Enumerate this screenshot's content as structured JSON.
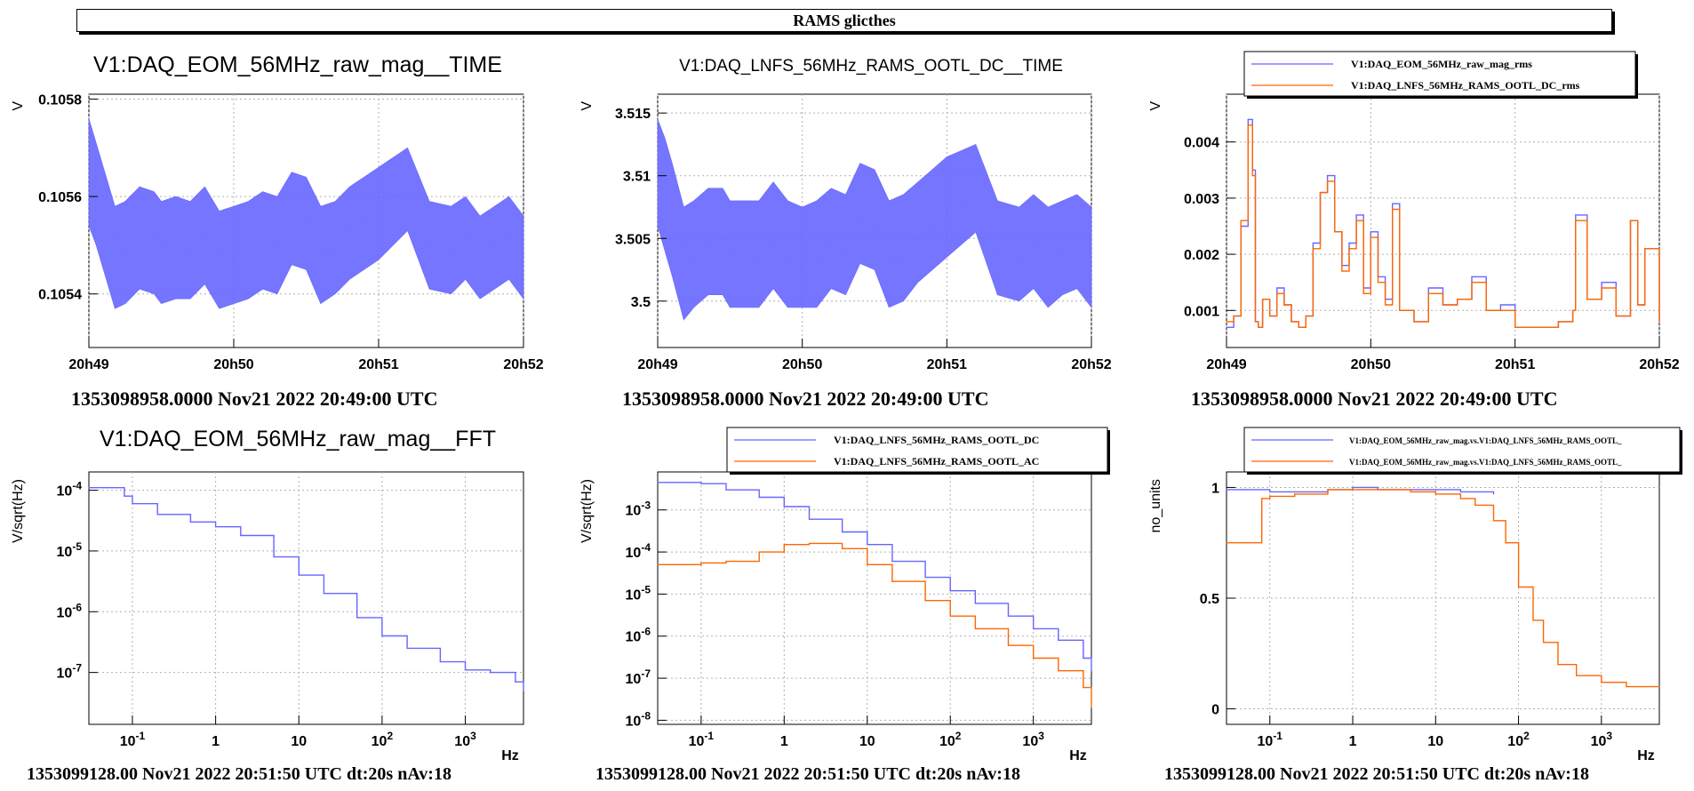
{
  "page_title": "RAMS glicthes",
  "colors": {
    "series_blue": "#6666ff",
    "series_orange": "#ff6600",
    "grid": "#b0b0b0",
    "frame": "#000000"
  },
  "chart_data": [
    {
      "id": "p1",
      "type": "line",
      "title": "V1:DAQ_EOM_56MHz_raw_mag__TIME",
      "ylabel": "V",
      "xlabel": "",
      "x_ticks": [
        "20h49",
        "20h50",
        "20h51",
        "20h52"
      ],
      "y_ticks": [
        "0.1054",
        "0.1056",
        "0.1058"
      ],
      "ylim": [
        0.10529,
        0.10581
      ],
      "grid": true,
      "footer": "1353098958.0000 Nov21 2022 20:49:00 UTC",
      "series": [
        {
          "color": "#6666ff",
          "x": [
            0,
            0.05,
            0.1,
            0.18,
            0.25,
            0.35,
            0.45,
            0.5,
            0.6,
            0.7,
            0.8,
            0.9,
            1.0,
            1.1,
            1.2,
            1.3,
            1.4,
            1.5,
            1.6,
            1.7,
            1.8,
            1.9,
            2.0,
            2.1,
            2.2,
            2.35,
            2.5,
            2.6,
            2.7,
            2.8,
            2.9,
            3.0
          ],
          "y": [
            0.10566,
            0.10564,
            0.1056,
            0.10552,
            0.10548,
            0.10551,
            0.10552,
            0.1055,
            0.10549,
            0.10548,
            0.10552,
            0.10548,
            0.10547,
            0.10548,
            0.10551,
            0.1055,
            0.10556,
            0.10555,
            0.10548,
            0.10549,
            0.10553,
            0.10555,
            0.10557,
            0.1056,
            0.10562,
            0.1055,
            0.10549,
            0.10552,
            0.10548,
            0.1055,
            0.10552,
            0.10548
          ],
          "ymin": [
            0.10554,
            0.1055,
            0.10545,
            0.10537,
            0.10538,
            0.10541,
            0.1054,
            0.10538,
            0.10539,
            0.10539,
            0.10542,
            0.10537,
            0.10538,
            0.10539,
            0.10541,
            0.1054,
            0.10546,
            0.10545,
            0.10538,
            0.1054,
            0.10543,
            0.10545,
            0.10547,
            0.1055,
            0.10553,
            0.10541,
            0.1054,
            0.10543,
            0.10539,
            0.10541,
            0.10543,
            0.10539
          ],
          "ymax": [
            0.10576,
            0.10571,
            0.10566,
            0.10558,
            0.10559,
            0.10562,
            0.10561,
            0.10559,
            0.1056,
            0.10559,
            0.10562,
            0.10557,
            0.10558,
            0.10559,
            0.10561,
            0.1056,
            0.10565,
            0.10564,
            0.10558,
            0.10559,
            0.10562,
            0.10564,
            0.10566,
            0.10568,
            0.1057,
            0.10559,
            0.10558,
            0.1056,
            0.10556,
            0.10558,
            0.1056,
            0.10556
          ]
        }
      ]
    },
    {
      "id": "p2",
      "type": "line",
      "title": "V1:DAQ_LNFS_56MHz_RAMS_OOTL_DC__TIME",
      "ylabel": "V",
      "xlabel": "",
      "x_ticks": [
        "20h49",
        "20h50",
        "20h51",
        "20h52"
      ],
      "y_ticks": [
        "3.5",
        "3.505",
        "3.51",
        "3.515"
      ],
      "ylim": [
        3.4963,
        3.5165
      ],
      "grid": true,
      "footer": "1353098958.0000 Nov21 2022 20:49:00 UTC",
      "series": [
        {
          "color": "#6666ff",
          "x": [
            0,
            0.05,
            0.1,
            0.18,
            0.25,
            0.35,
            0.45,
            0.5,
            0.6,
            0.7,
            0.8,
            0.9,
            1.0,
            1.1,
            1.2,
            1.3,
            1.4,
            1.5,
            1.6,
            1.7,
            1.8,
            1.9,
            2.0,
            2.1,
            2.2,
            2.35,
            2.5,
            2.6,
            2.7,
            2.8,
            2.9,
            3.0
          ],
          "y": [
            3.5105,
            3.5095,
            3.508,
            3.5045,
            3.503,
            3.5045,
            3.505,
            3.504,
            3.5035,
            3.503,
            3.5045,
            3.503,
            3.5025,
            3.503,
            3.5045,
            3.504,
            3.5065,
            3.506,
            3.503,
            3.5035,
            3.505,
            3.506,
            3.507,
            3.508,
            3.509,
            3.504,
            3.5035,
            3.5045,
            3.503,
            3.504,
            3.5045,
            3.503
          ],
          "ymin": [
            3.506,
            3.504,
            3.502,
            3.4985,
            3.4995,
            3.5005,
            3.5005,
            3.4995,
            3.4995,
            3.4995,
            3.501,
            3.4995,
            3.4995,
            3.4995,
            3.501,
            3.5005,
            3.503,
            3.5025,
            3.4995,
            3.5,
            3.5015,
            3.5025,
            3.5035,
            3.5045,
            3.5055,
            3.5005,
            3.5,
            3.501,
            3.4995,
            3.5005,
            3.501,
            3.4995
          ],
          "ymax": [
            3.5145,
            3.513,
            3.511,
            3.5075,
            3.508,
            3.509,
            3.509,
            3.508,
            3.508,
            3.508,
            3.5095,
            3.508,
            3.5075,
            3.508,
            3.509,
            3.5085,
            3.511,
            3.5105,
            3.508,
            3.5085,
            3.5095,
            3.5105,
            3.5115,
            3.512,
            3.5125,
            3.508,
            3.5075,
            3.5085,
            3.5075,
            3.508,
            3.5085,
            3.5075
          ]
        }
      ]
    },
    {
      "id": "p3",
      "type": "line",
      "title": "",
      "ylabel": "V",
      "xlabel": "",
      "x_ticks": [
        "20h49",
        "20h50",
        "20h51",
        "20h52"
      ],
      "y_ticks": [
        "0.001",
        "0.002",
        "0.003",
        "0.004"
      ],
      "ylim": [
        0.00034,
        0.00485
      ],
      "grid": true,
      "legend": "top",
      "footer": "1353098958.0000 Nov21 2022 20:49:00 UTC",
      "series": [
        {
          "name": "V1:DAQ_EOM_56MHz_raw_mag_rms",
          "color": "#6666ff",
          "x": [
            0,
            0.05,
            0.1,
            0.15,
            0.18,
            0.2,
            0.22,
            0.25,
            0.3,
            0.35,
            0.4,
            0.45,
            0.5,
            0.55,
            0.6,
            0.65,
            0.7,
            0.75,
            0.8,
            0.85,
            0.9,
            0.95,
            1.0,
            1.05,
            1.1,
            1.15,
            1.2,
            1.3,
            1.4,
            1.5,
            1.6,
            1.7,
            1.8,
            1.9,
            2.0,
            2.1,
            2.2,
            2.3,
            2.4,
            2.42,
            2.5,
            2.6,
            2.7,
            2.8,
            2.85,
            2.9,
            3.0
          ],
          "y": [
            0.0007,
            0.0009,
            0.0025,
            0.0044,
            0.0035,
            0.0008,
            0.0007,
            0.0012,
            0.0009,
            0.0014,
            0.0011,
            0.0008,
            0.0007,
            0.0009,
            0.0022,
            0.0031,
            0.0034,
            0.0024,
            0.0018,
            0.0022,
            0.0027,
            0.0014,
            0.0024,
            0.0016,
            0.0012,
            0.0029,
            0.001,
            0.0008,
            0.0014,
            0.0011,
            0.0012,
            0.0016,
            0.001,
            0.0011,
            0.0007,
            0.0007,
            0.0007,
            0.0008,
            0.001,
            0.0027,
            0.0012,
            0.0015,
            0.0009,
            0.0026,
            0.0011,
            0.0021,
            0.0008
          ]
        },
        {
          "name": "V1:DAQ_LNFS_56MHz_RAMS_OOTL_DC_rms",
          "color": "#ff6600",
          "x": [
            0,
            0.05,
            0.1,
            0.15,
            0.18,
            0.2,
            0.22,
            0.25,
            0.3,
            0.35,
            0.4,
            0.45,
            0.5,
            0.55,
            0.6,
            0.65,
            0.7,
            0.75,
            0.8,
            0.85,
            0.9,
            0.95,
            1.0,
            1.05,
            1.1,
            1.15,
            1.2,
            1.3,
            1.4,
            1.5,
            1.6,
            1.7,
            1.8,
            1.9,
            2.0,
            2.1,
            2.2,
            2.3,
            2.4,
            2.42,
            2.5,
            2.6,
            2.7,
            2.8,
            2.85,
            2.9,
            3.0
          ],
          "y": [
            0.0008,
            0.0009,
            0.0026,
            0.0043,
            0.0034,
            0.0008,
            0.0007,
            0.0012,
            0.0009,
            0.0013,
            0.0011,
            0.0008,
            0.0007,
            0.0009,
            0.0021,
            0.0031,
            0.0033,
            0.0024,
            0.0017,
            0.0021,
            0.0026,
            0.0013,
            0.0023,
            0.0015,
            0.0011,
            0.0028,
            0.001,
            0.0008,
            0.0013,
            0.0011,
            0.0012,
            0.0015,
            0.001,
            0.001,
            0.0007,
            0.0007,
            0.0007,
            0.0008,
            0.001,
            0.0026,
            0.0012,
            0.0014,
            0.0009,
            0.0026,
            0.0011,
            0.0021,
            0.0008
          ]
        }
      ]
    },
    {
      "id": "p4",
      "type": "line",
      "title": "V1:DAQ_EOM_56MHz_raw_mag__FFT",
      "ylabel": "V/sqrt(Hz)",
      "xlabel": "Hz",
      "x_ticks": [
        "10^-1",
        "1",
        "10",
        "10^2",
        "10^3"
      ],
      "y_ticks": [
        "10^-7",
        "10^-6",
        "10^-5",
        "10^-4"
      ],
      "xlim": [
        0.03,
        5000
      ],
      "ylim": [
        1.4e-08,
        0.0002
      ],
      "log_x": true,
      "log_y": true,
      "grid": true,
      "footer": "1353099128.00 Nov21 2022 20:51:50 UTC dt:20s nAv:18",
      "series": [
        {
          "color": "#6666ff",
          "x": [
            0.03,
            0.05,
            0.08,
            0.1,
            0.2,
            0.5,
            1,
            2,
            5,
            10,
            20,
            50,
            100,
            200,
            500,
            1000,
            2000,
            4000,
            5000
          ],
          "y": [
            0.00011,
            0.00011,
            8e-05,
            6e-05,
            4e-05,
            3e-05,
            2.5e-05,
            1.8e-05,
            8e-06,
            4e-06,
            2e-06,
            8e-07,
            4e-07,
            2.5e-07,
            1.5e-07,
            1.1e-07,
            1e-07,
            7e-08,
            5e-08
          ]
        }
      ]
    },
    {
      "id": "p5",
      "type": "line",
      "title": "",
      "ylabel": "V/sqrt(Hz)",
      "xlabel": "Hz",
      "x_ticks": [
        "10^-1",
        "1",
        "10",
        "10^2",
        "10^3"
      ],
      "y_ticks": [
        "10^-8",
        "10^-7",
        "10^-6",
        "10^-5",
        "10^-4",
        "10^-3"
      ],
      "xlim": [
        0.03,
        5000
      ],
      "ylim": [
        8e-09,
        0.008
      ],
      "log_x": true,
      "log_y": true,
      "grid": true,
      "legend": "top",
      "footer": "1353099128.00 Nov21 2022 20:51:50 UTC dt:20s nAv:18",
      "series": [
        {
          "name": "V1:DAQ_LNFS_56MHz_RAMS_OOTL_DC",
          "color": "#6666ff",
          "x": [
            0.03,
            0.05,
            0.1,
            0.2,
            0.5,
            1,
            2,
            5,
            10,
            20,
            50,
            100,
            200,
            500,
            1000,
            2000,
            4000,
            5000
          ],
          "y": [
            0.0045,
            0.0045,
            0.0042,
            0.003,
            0.002,
            0.0012,
            0.0006,
            0.0003,
            0.00015,
            6e-05,
            2.5e-05,
            1.2e-05,
            6e-06,
            3e-06,
            1.5e-06,
            8e-07,
            3e-07,
            1.5e-07
          ]
        },
        {
          "name": "V1:DAQ_LNFS_56MHz_RAMS_OOTL_AC",
          "color": "#ff6600",
          "x": [
            0.03,
            0.05,
            0.1,
            0.2,
            0.5,
            1,
            2,
            5,
            10,
            20,
            50,
            100,
            200,
            500,
            1000,
            2000,
            4000,
            5000
          ],
          "y": [
            5e-05,
            5e-05,
            5.5e-05,
            6e-05,
            0.0001,
            0.00015,
            0.00016,
            0.00012,
            5e-05,
            2e-05,
            7e-06,
            3e-06,
            1.5e-06,
            6e-07,
            3e-07,
            1.5e-07,
            6e-08,
            2e-08
          ]
        }
      ]
    },
    {
      "id": "p6",
      "type": "line",
      "title": "",
      "ylabel": "no_units",
      "xlabel": "Hz",
      "x_ticks": [
        "10^-1",
        "1",
        "10",
        "10^2",
        "10^3"
      ],
      "y_ticks": [
        "0",
        "0.5",
        "1"
      ],
      "xlim": [
        0.03,
        5000
      ],
      "ylim": [
        -0.07,
        1.07
      ],
      "log_x": true,
      "log_y": false,
      "grid": true,
      "legend": "top",
      "footer": "1353099128.00 Nov21 2022 20:51:50 UTC dt:20s nAv:18",
      "series": [
        {
          "name": "V1:DAQ_EOM_56MHz_raw_mag.vs.V1:DAQ_LNFS_56MHz_RAMS_OOTL_",
          "color": "#6666ff",
          "x": [
            0.03,
            0.05,
            0.1,
            0.2,
            0.5,
            1,
            2,
            5,
            10,
            20,
            50
          ],
          "y": [
            0.99,
            0.99,
            0.98,
            0.98,
            0.99,
            1.0,
            0.99,
            0.99,
            0.99,
            0.98,
            0.97
          ]
        },
        {
          "name": "V1:DAQ_EOM_56MHz_raw_mag.vs.V1:DAQ_LNFS_56MHz_RAMS_OOTL_",
          "color": "#ff6600",
          "x": [
            0.03,
            0.05,
            0.08,
            0.1,
            0.2,
            0.5,
            1,
            2,
            5,
            10,
            20,
            30,
            50,
            70,
            100,
            150,
            200,
            300,
            500,
            1000,
            2000,
            5000
          ],
          "y": [
            0.75,
            0.75,
            0.95,
            0.96,
            0.97,
            0.99,
            0.99,
            0.99,
            0.98,
            0.97,
            0.95,
            0.92,
            0.85,
            0.75,
            0.55,
            0.4,
            0.3,
            0.2,
            0.15,
            0.12,
            0.1,
            0.1
          ]
        }
      ]
    }
  ]
}
